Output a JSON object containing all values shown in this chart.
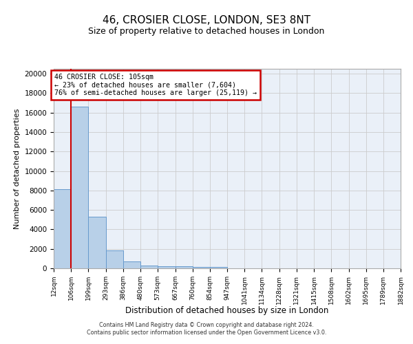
{
  "title": "46, CROSIER CLOSE, LONDON, SE3 8NT",
  "subtitle": "Size of property relative to detached houses in London",
  "xlabel": "Distribution of detached houses by size in London",
  "ylabel": "Number of detached properties",
  "bin_edges": [
    12,
    106,
    199,
    293,
    386,
    480,
    573,
    667,
    760,
    854,
    947,
    1041,
    1134,
    1228,
    1321,
    1415,
    1508,
    1602,
    1695,
    1789,
    1882
  ],
  "bin_labels": [
    "12sqm",
    "106sqm",
    "199sqm",
    "293sqm",
    "386sqm",
    "480sqm",
    "573sqm",
    "667sqm",
    "760sqm",
    "854sqm",
    "947sqm",
    "1041sqm",
    "1134sqm",
    "1228sqm",
    "1321sqm",
    "1415sqm",
    "1508sqm",
    "1602sqm",
    "1695sqm",
    "1789sqm",
    "1882sqm"
  ],
  "bar_heights": [
    8100,
    16600,
    5300,
    1870,
    720,
    310,
    220,
    200,
    175,
    150,
    0,
    0,
    0,
    0,
    0,
    0,
    0,
    0,
    0,
    0
  ],
  "bar_color": "#b8d0e8",
  "bar_edge_color": "#6699cc",
  "property_line_x": 106,
  "annotation_text_line1": "46 CROSIER CLOSE: 105sqm",
  "annotation_text_line2": "← 23% of detached houses are smaller (7,604)",
  "annotation_text_line3": "76% of semi-detached houses are larger (25,119) →",
  "annotation_box_color": "#ffffff",
  "annotation_box_edge": "#cc0000",
  "red_line_color": "#cc0000",
  "grid_color": "#cccccc",
  "background_color": "#eaf0f8",
  "ylim": [
    0,
    20500
  ],
  "yticks": [
    0,
    2000,
    4000,
    6000,
    8000,
    10000,
    12000,
    14000,
    16000,
    18000,
    20000
  ],
  "footer_line1": "Contains HM Land Registry data © Crown copyright and database right 2024.",
  "footer_line2": "Contains public sector information licensed under the Open Government Licence v3.0."
}
